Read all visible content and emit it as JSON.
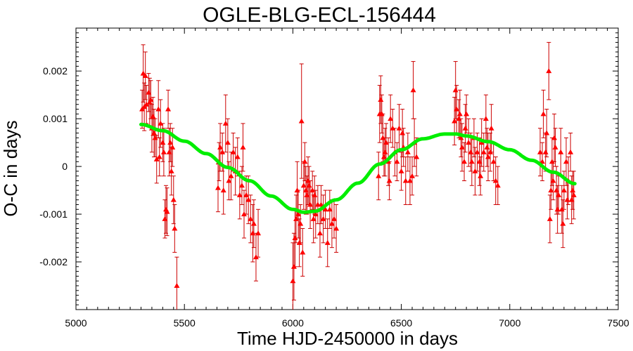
{
  "chart_data": {
    "type": "scatter",
    "title": "OGLE-BLG-ECL-156444",
    "xlabel": "Time HJD-2450000 in days",
    "ylabel": "O-C in days",
    "xlim": [
      5000,
      7500
    ],
    "ylim": [
      -0.003,
      0.0029
    ],
    "xticks": [
      5000,
      5500,
      6000,
      6500,
      7000,
      7500
    ],
    "yticks": [
      -0.002,
      -0.001,
      0,
      0.001,
      0.002
    ],
    "xtick_labels": [
      "5000",
      "5500",
      "6000",
      "6500",
      "7000",
      "7500"
    ],
    "ytick_labels": [
      "-0.002",
      "-0.001",
      "0",
      "0.001",
      "0.002"
    ],
    "grid": false,
    "colors": {
      "points": "#ff0000",
      "errorbars": "#cc0000",
      "fit": "#00ee00",
      "axes": "#000000"
    },
    "series": [
      {
        "marker": "triangle",
        "points": [
          [
            5305,
            0.0012,
            0.0004
          ],
          [
            5310,
            0.00195,
            0.0006
          ],
          [
            5315,
            0.00125,
            0.0005
          ],
          [
            5320,
            0.0019,
            0.0005
          ],
          [
            5325,
            0.0013,
            0.0004
          ],
          [
            5335,
            0.00155,
            0.0004
          ],
          [
            5340,
            0.00135,
            0.0005
          ],
          [
            5345,
            0.0014,
            0.0004
          ],
          [
            5350,
            0.0008,
            0.0005
          ],
          [
            5355,
            0.00105,
            0.0004
          ],
          [
            5360,
            0.0007,
            0.0005
          ],
          [
            5365,
            0.0006,
            0.0004
          ],
          [
            5372,
            0.00015,
            0.0005
          ],
          [
            5380,
            0.0012,
            0.0006
          ],
          [
            5385,
            0.0002,
            0.0004
          ],
          [
            5390,
            0.0009,
            0.0005
          ],
          [
            5400,
            0.0005,
            0.0004
          ],
          [
            5405,
            0.0003,
            0.0005
          ],
          [
            5410,
            -0.0011,
            0.0004
          ],
          [
            5415,
            -0.0009,
            0.0005
          ],
          [
            5420,
            -0.00095,
            0.0005
          ],
          [
            5425,
            0.0012,
            0.0004
          ],
          [
            5430,
            0.0003,
            0.0005
          ],
          [
            5435,
            0.0005,
            0.0004
          ],
          [
            5440,
            -0.0001,
            0.0005
          ],
          [
            5445,
            0.0004,
            0.0004
          ],
          [
            5450,
            -0.0007,
            0.0005
          ],
          [
            5455,
            -0.0013,
            0.0005
          ],
          [
            5465,
            -0.0025,
            0.0006
          ],
          [
            5655,
            -0.00045,
            0.0005
          ],
          [
            5660,
            0.0001,
            0.0004
          ],
          [
            5665,
            0.0004,
            0.0005
          ],
          [
            5675,
            0.0003,
            0.0004
          ],
          [
            5680,
            -0.0005,
            0.0005
          ],
          [
            5690,
            0.0009,
            0.0006
          ],
          [
            5700,
            0.0005,
            0.0005
          ],
          [
            5705,
            -0.0003,
            0.0004
          ],
          [
            5715,
            -0.0002,
            0.0005
          ],
          [
            5725,
            0.0003,
            0.0004
          ],
          [
            5735,
            -0.0001,
            0.0005
          ],
          [
            5745,
            0.0002,
            0.0004
          ],
          [
            5755,
            -0.0006,
            0.0005
          ],
          [
            5765,
            -0.0004,
            0.0004
          ],
          [
            5770,
            0.0004,
            0.0005
          ],
          [
            5775,
            -0.001,
            0.0005
          ],
          [
            5785,
            -0.0006,
            0.0004
          ],
          [
            5795,
            -0.0007,
            0.0005
          ],
          [
            5805,
            -0.0011,
            0.0005
          ],
          [
            5815,
            -0.0014,
            0.0006
          ],
          [
            5820,
            -0.0012,
            0.0005
          ],
          [
            5830,
            -0.0019,
            0.0005
          ],
          [
            5840,
            -0.0014,
            0.0005
          ],
          [
            6000,
            -0.0024,
            0.0008
          ],
          [
            6005,
            -0.0021,
            0.0007
          ],
          [
            6010,
            -0.0015,
            0.0006
          ],
          [
            6015,
            -0.0011,
            0.0005
          ],
          [
            6020,
            -0.0005,
            0.0006
          ],
          [
            6025,
            -0.001,
            0.0005
          ],
          [
            6030,
            -0.0016,
            0.0005
          ],
          [
            6035,
            -0.0012,
            0.0004
          ],
          [
            6040,
            0.00095,
            0.0012
          ],
          [
            6045,
            -0.0018,
            0.0005
          ],
          [
            6050,
            -0.0004,
            0.0005
          ],
          [
            6055,
            0.0001,
            0.0004
          ],
          [
            6060,
            -0.0005,
            0.0005
          ],
          [
            6065,
            -0.0006,
            0.0004
          ],
          [
            6070,
            -0.0003,
            0.0005
          ],
          [
            6075,
            -0.0004,
            0.0004
          ],
          [
            6080,
            -0.0008,
            0.0005
          ],
          [
            6090,
            -0.0005,
            0.0004
          ],
          [
            6095,
            -0.0011,
            0.0005
          ],
          [
            6100,
            -0.0006,
            0.0004
          ],
          [
            6105,
            -0.001,
            0.0005
          ],
          [
            6115,
            -0.0008,
            0.0004
          ],
          [
            6125,
            -0.0014,
            0.0005
          ],
          [
            6130,
            -0.0008,
            0.0004
          ],
          [
            6140,
            -0.0011,
            0.0005
          ],
          [
            6150,
            -0.0009,
            0.0004
          ],
          [
            6160,
            -0.0016,
            0.0005
          ],
          [
            6170,
            -0.0009,
            0.0004
          ],
          [
            6180,
            -0.0012,
            0.0005
          ],
          [
            6190,
            -0.0011,
            0.0004
          ],
          [
            6200,
            -0.0013,
            0.0005
          ],
          [
            6395,
            -0.0002,
            0.0005
          ],
          [
            6400,
            0.0011,
            0.0006
          ],
          [
            6405,
            0.0014,
            0.0005
          ],
          [
            6410,
            0.0011,
            0.0004
          ],
          [
            6415,
            0.0006,
            0.0005
          ],
          [
            6420,
            0.0002,
            0.0004
          ],
          [
            6425,
            0.0003,
            0.0005
          ],
          [
            6430,
            0.0005,
            0.0004
          ],
          [
            6440,
            0.0001,
            0.0005
          ],
          [
            6445,
            -0.0003,
            0.0004
          ],
          [
            6450,
            0.001,
            0.0005
          ],
          [
            6460,
            0.0008,
            0.0004
          ],
          [
            6470,
            0.0003,
            0.0005
          ],
          [
            6480,
            0.0001,
            0.0004
          ],
          [
            6490,
            0.0008,
            0.0005
          ],
          [
            6500,
            -0.0001,
            0.0004
          ],
          [
            6505,
            0.0007,
            0.0005
          ],
          [
            6510,
            0.0004,
            0.0004
          ],
          [
            6520,
            -0.0003,
            0.0005
          ],
          [
            6530,
            0.0003,
            0.0004
          ],
          [
            6540,
            -0.0003,
            0.0005
          ],
          [
            6550,
            -0.0002,
            0.0004
          ],
          [
            6555,
            0.0016,
            0.0006
          ],
          [
            6560,
            0.0005,
            0.0005
          ],
          [
            6570,
            0.0002,
            0.0004
          ],
          [
            6745,
            0.00095,
            0.0005
          ],
          [
            6750,
            0.0016,
            0.0006
          ],
          [
            6755,
            0.0012,
            0.0005
          ],
          [
            6765,
            0.001,
            0.0004
          ],
          [
            6770,
            0.0011,
            0.0005
          ],
          [
            6775,
            0.0006,
            0.0004
          ],
          [
            6780,
            0.0004,
            0.0005
          ],
          [
            6790,
            0.0001,
            0.0004
          ],
          [
            6795,
            0.0008,
            0.0005
          ],
          [
            6800,
            0.0011,
            0.0004
          ],
          [
            6810,
            0.0005,
            0.0005
          ],
          [
            6820,
            0.0003,
            0.0004
          ],
          [
            6825,
            0.0001,
            0.0005
          ],
          [
            6835,
            0.0006,
            0.0004
          ],
          [
            6840,
            -0.0001,
            0.0005
          ],
          [
            6850,
            0.0003,
            0.0004
          ],
          [
            6860,
            0.0001,
            0.0005
          ],
          [
            6865,
            -0.0002,
            0.0004
          ],
          [
            6870,
            0.0005,
            0.0005
          ],
          [
            6880,
            0.0003,
            0.0004
          ],
          [
            6890,
            0.001,
            0.0005
          ],
          [
            6895,
            0.0004,
            0.0004
          ],
          [
            6900,
            0.0002,
            0.0005
          ],
          [
            6910,
            0.0003,
            0.0004
          ],
          [
            6915,
            0.0008,
            0.0005
          ],
          [
            6925,
            0.0001,
            0.0004
          ],
          [
            6935,
            -0.0003,
            0.0005
          ],
          [
            6945,
            -0.0004,
            0.0004
          ],
          [
            7140,
            0.0003,
            0.0005
          ],
          [
            7150,
            0.0001,
            0.0004
          ],
          [
            7155,
            0.0011,
            0.0005
          ],
          [
            7165,
            0.0003,
            0.0004
          ],
          [
            7170,
            0.0007,
            0.0005
          ],
          [
            7180,
            0.002,
            0.0006
          ],
          [
            7185,
            -0.0011,
            0.0005
          ],
          [
            7190,
            -0.0005,
            0.0004
          ],
          [
            7195,
            0.0001,
            0.0005
          ],
          [
            7200,
            -0.0003,
            0.0004
          ],
          [
            7205,
            0.0006,
            0.0005
          ],
          [
            7210,
            0.0004,
            0.0004
          ],
          [
            7215,
            -0.0005,
            0.0005
          ],
          [
            7220,
            -0.0009,
            0.0005
          ],
          [
            7225,
            -0.0006,
            0.0004
          ],
          [
            7235,
            0.0003,
            0.0005
          ],
          [
            7240,
            -0.0009,
            0.0005
          ],
          [
            7245,
            -0.0012,
            0.0005
          ],
          [
            7250,
            -0.0005,
            0.0004
          ],
          [
            7260,
            0.0001,
            0.0005
          ],
          [
            7265,
            -0.0007,
            0.0004
          ],
          [
            7270,
            -0.0003,
            0.0005
          ],
          [
            7280,
            0.0003,
            0.0004
          ],
          [
            7285,
            -0.0007,
            0.0005
          ],
          [
            7290,
            -0.0005,
            0.0004
          ],
          [
            7295,
            -0.0006,
            0.0005
          ]
        ]
      }
    ],
    "fit": {
      "x": [
        5300,
        5400,
        5500,
        5600,
        5700,
        5800,
        5900,
        6000,
        6050,
        6100,
        6200,
        6300,
        6400,
        6500,
        6600,
        6700,
        6750,
        6800,
        6900,
        7000,
        7100,
        7200,
        7300
      ],
      "y": [
        0.00088,
        0.00075,
        0.00053,
        0.00027,
        -2e-05,
        -0.0003,
        -0.00062,
        -0.0009,
        -0.00096,
        -0.00094,
        -0.0007,
        -0.00035,
        5e-05,
        0.00035,
        0.00058,
        0.00068,
        0.00068,
        0.00064,
        0.00052,
        0.00035,
        0.00013,
        -0.00012,
        -0.00036
      ]
    }
  }
}
